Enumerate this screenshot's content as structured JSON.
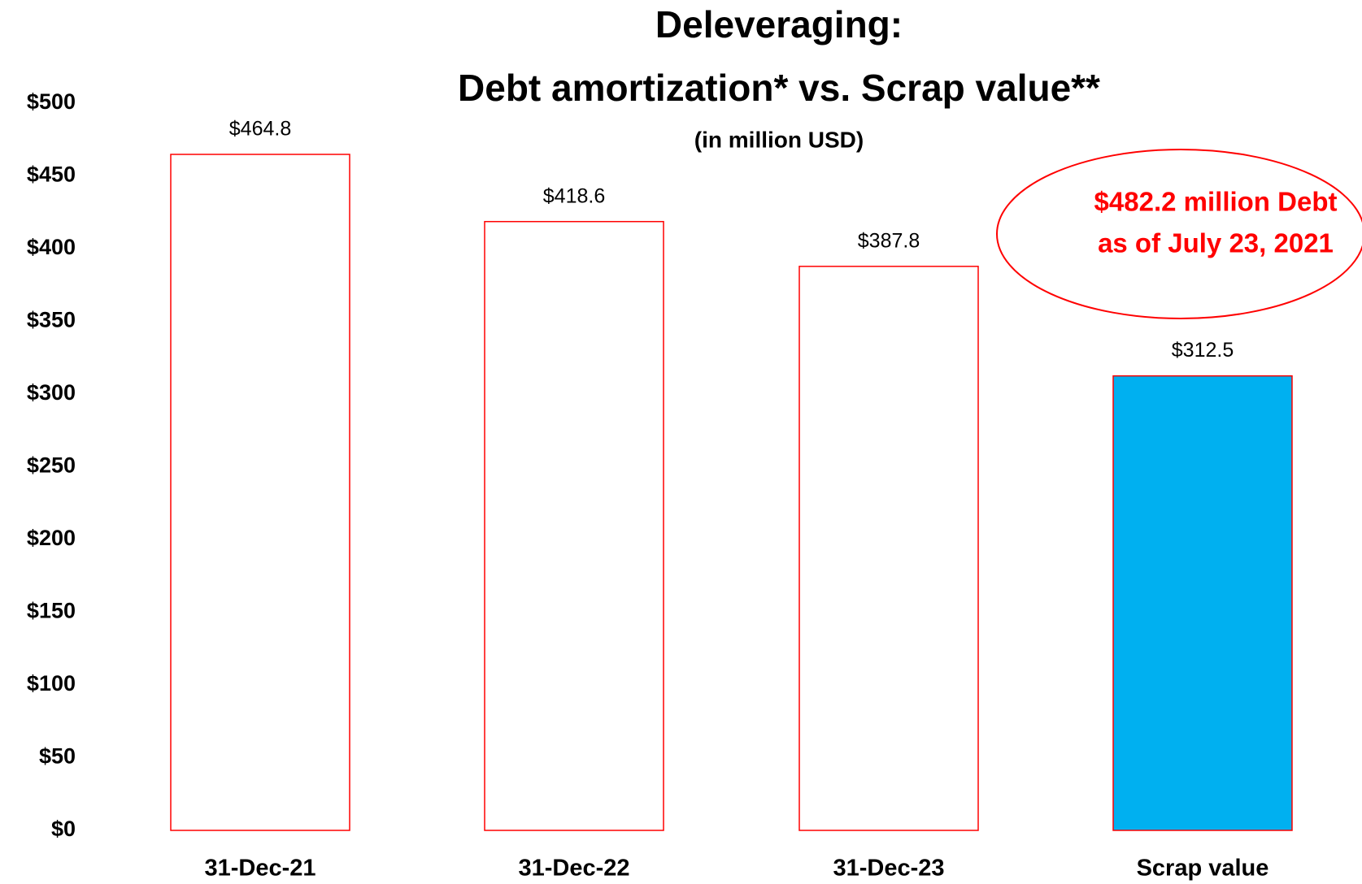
{
  "chart_data": {
    "type": "bar",
    "title": "Deleveraging:",
    "title_line2": "Debt amortization* vs. Scrap value**",
    "subtitle": "(in million USD)",
    "categories": [
      "31-Dec-21",
      "31-Dec-22",
      "31-Dec-23",
      "Scrap value"
    ],
    "values": [
      464.8,
      418.6,
      387.8,
      312.5
    ],
    "value_labels": [
      "$464.8",
      "$418.6",
      "$387.8",
      "$312.5"
    ],
    "fills": [
      "#ffffff",
      "#ffffff",
      "#ffffff",
      "#00b0f0"
    ],
    "strokes": [
      "#ff0000",
      "#ff0000",
      "#ff0000",
      "#ff0000"
    ],
    "ylim": [
      0,
      500
    ],
    "yticks": [
      {
        "value": 0,
        "label": "$0"
      },
      {
        "value": 50,
        "label": "$50"
      },
      {
        "value": 100,
        "label": "$100"
      },
      {
        "value": 150,
        "label": "$150"
      },
      {
        "value": 200,
        "label": "$200"
      },
      {
        "value": 250,
        "label": "$250"
      },
      {
        "value": 300,
        "label": "$300"
      },
      {
        "value": 350,
        "label": "$350"
      },
      {
        "value": 400,
        "label": "$400"
      },
      {
        "value": 450,
        "label": "$450"
      },
      {
        "value": 500,
        "label": "$500"
      }
    ],
    "grid": false,
    "annotation": [
      "$482.2 million Debt",
      "as of July 23, 2021"
    ],
    "annotation_color": "#ff0000"
  }
}
